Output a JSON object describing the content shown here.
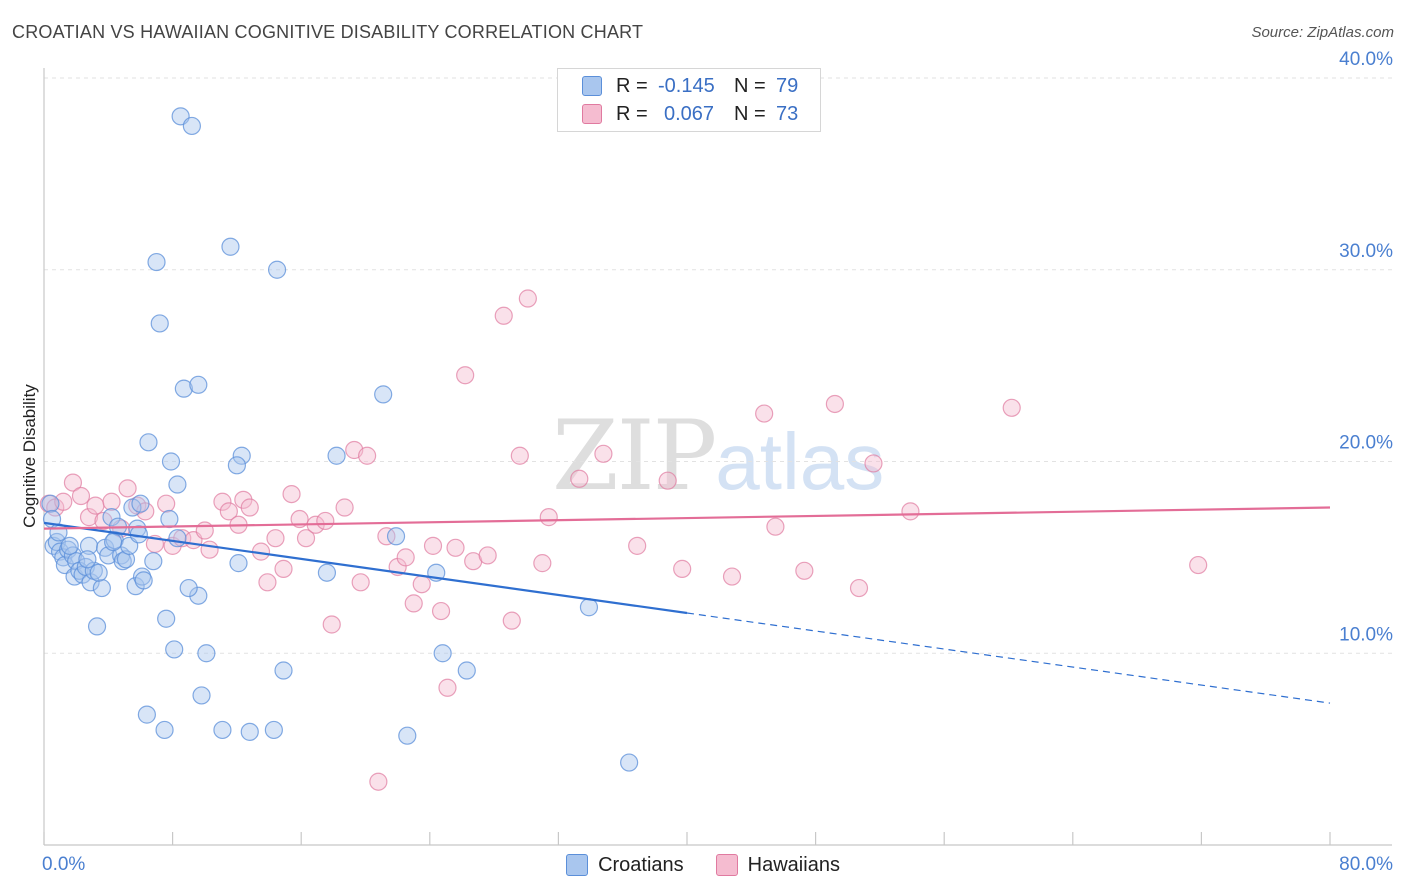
{
  "title": "CROATIAN VS HAWAIIAN COGNITIVE DISABILITY CORRELATION CHART",
  "source": "Source: ZipAtlas.com",
  "watermark": {
    "zip": "ZIP",
    "atlas": "atlas"
  },
  "colors": {
    "croatians": "#5b8fd9",
    "croatians_fill": "#a9c6ee",
    "hawaiians": "#e07aa0",
    "hawaiians_fill": "#f5bcd0",
    "blue_line": "#2f6fd0",
    "pink_line": "#e36d97",
    "tick": "#4a7fd0"
  },
  "legend": {
    "r_label": "R =",
    "n_label": "N =",
    "croatians": {
      "r": "-0.145",
      "n": "79"
    },
    "hawaiians": {
      "r": "0.067",
      "n": "73"
    }
  },
  "chart_data": {
    "type": "scatter",
    "title": "CROATIAN VS HAWAIIAN COGNITIVE DISABILITY CORRELATION CHART",
    "xlabel": "",
    "ylabel": "Cognitive Disability",
    "xlim": [
      0,
      80
    ],
    "ylim": [
      0,
      40
    ],
    "x_tick_labels": [
      "0.0%",
      "80.0%"
    ],
    "y_ticks": [
      10,
      20,
      30,
      40
    ],
    "y_tick_labels": [
      "10.0%",
      "20.0%",
      "30.0%",
      "40.0%"
    ],
    "grid": "horizontal dashed",
    "legend_position": "top-center",
    "series": [
      {
        "name": "Croatians",
        "r": -0.145,
        "n": 79,
        "trend": {
          "x0": 0,
          "y0": 16.8,
          "x1": 40,
          "y1": 12.1,
          "dashed_to_x": 80,
          "dashed_y": 7.4
        },
        "points": [
          [
            0.4,
            17.8
          ],
          [
            0.5,
            17.0
          ],
          [
            0.6,
            15.6
          ],
          [
            0.8,
            15.8
          ],
          [
            1.0,
            15.3
          ],
          [
            1.2,
            15.0
          ],
          [
            1.3,
            14.6
          ],
          [
            1.5,
            15.4
          ],
          [
            1.8,
            15.1
          ],
          [
            1.9,
            14.0
          ],
          [
            2.0,
            14.8
          ],
          [
            2.2,
            14.3
          ],
          [
            2.4,
            14.1
          ],
          [
            2.6,
            14.5
          ],
          [
            2.8,
            15.6
          ],
          [
            2.9,
            13.7
          ],
          [
            3.1,
            14.3
          ],
          [
            3.3,
            11.4
          ],
          [
            3.6,
            13.4
          ],
          [
            3.8,
            15.5
          ],
          [
            4.0,
            15.1
          ],
          [
            4.2,
            17.1
          ],
          [
            4.4,
            15.9
          ],
          [
            4.6,
            16.6
          ],
          [
            4.8,
            15.1
          ],
          [
            4.9,
            14.8
          ],
          [
            5.1,
            14.9
          ],
          [
            5.3,
            15.6
          ],
          [
            5.5,
            17.6
          ],
          [
            5.7,
            13.5
          ],
          [
            5.8,
            16.5
          ],
          [
            6.0,
            17.8
          ],
          [
            6.1,
            14.0
          ],
          [
            6.2,
            13.8
          ],
          [
            6.4,
            6.8
          ],
          [
            6.5,
            21.0
          ],
          [
            6.8,
            14.8
          ],
          [
            7.0,
            30.4
          ],
          [
            7.2,
            27.2
          ],
          [
            7.5,
            6.0
          ],
          [
            7.6,
            11.8
          ],
          [
            8.1,
            10.2
          ],
          [
            8.5,
            38.0
          ],
          [
            8.7,
            23.8
          ],
          [
            9.2,
            37.5
          ],
          [
            9.6,
            24.0
          ],
          [
            9.8,
            7.8
          ],
          [
            10.1,
            10.0
          ],
          [
            11.1,
            6.0
          ],
          [
            11.6,
            31.2
          ],
          [
            12.1,
            14.7
          ],
          [
            12.3,
            20.3
          ],
          [
            12.8,
            5.9
          ],
          [
            14.3,
            6.0
          ],
          [
            14.5,
            30.0
          ],
          [
            14.9,
            9.1
          ],
          [
            17.6,
            14.2
          ],
          [
            18.2,
            20.3
          ],
          [
            21.1,
            23.5
          ],
          [
            21.9,
            16.1
          ],
          [
            22.6,
            5.7
          ],
          [
            24.4,
            14.2
          ],
          [
            24.8,
            10.0
          ],
          [
            26.3,
            9.1
          ],
          [
            33.9,
            12.4
          ],
          [
            36.4,
            4.3
          ],
          [
            7.8,
            17.0
          ],
          [
            5.9,
            16.2
          ],
          [
            4.3,
            15.8
          ],
          [
            3.4,
            14.2
          ],
          [
            2.7,
            14.9
          ],
          [
            1.6,
            15.6
          ],
          [
            0.9,
            16.3
          ],
          [
            8.3,
            18.8
          ],
          [
            7.9,
            20.0
          ],
          [
            12.0,
            19.8
          ],
          [
            9.6,
            13.0
          ],
          [
            9.0,
            13.4
          ],
          [
            8.3,
            16.0
          ]
        ]
      },
      {
        "name": "Hawaiians",
        "r": 0.067,
        "n": 73,
        "trend": {
          "x0": 0,
          "y0": 16.5,
          "x1": 80,
          "y1": 17.6
        },
        "points": [
          [
            0.3,
            17.8
          ],
          [
            0.7,
            17.6
          ],
          [
            1.2,
            17.9
          ],
          [
            1.8,
            18.9
          ],
          [
            2.3,
            18.2
          ],
          [
            2.8,
            17.1
          ],
          [
            3.2,
            17.7
          ],
          [
            3.7,
            16.9
          ],
          [
            4.2,
            17.9
          ],
          [
            4.8,
            16.5
          ],
          [
            5.2,
            18.6
          ],
          [
            5.8,
            17.7
          ],
          [
            6.3,
            17.4
          ],
          [
            6.9,
            15.7
          ],
          [
            7.6,
            17.8
          ],
          [
            8.0,
            15.6
          ],
          [
            8.6,
            16.0
          ],
          [
            9.3,
            15.9
          ],
          [
            10.0,
            16.4
          ],
          [
            10.3,
            15.4
          ],
          [
            11.1,
            17.9
          ],
          [
            11.5,
            17.4
          ],
          [
            12.1,
            16.7
          ],
          [
            12.4,
            18.0
          ],
          [
            12.8,
            17.6
          ],
          [
            13.5,
            15.3
          ],
          [
            13.9,
            13.7
          ],
          [
            14.4,
            16.0
          ],
          [
            14.9,
            14.4
          ],
          [
            15.4,
            18.3
          ],
          [
            15.9,
            17.0
          ],
          [
            16.3,
            16.0
          ],
          [
            16.9,
            16.7
          ],
          [
            17.5,
            16.9
          ],
          [
            17.9,
            11.5
          ],
          [
            18.7,
            17.6
          ],
          [
            19.3,
            20.6
          ],
          [
            19.7,
            13.7
          ],
          [
            20.1,
            20.3
          ],
          [
            20.8,
            3.3
          ],
          [
            21.3,
            16.1
          ],
          [
            22.0,
            14.5
          ],
          [
            22.5,
            15.0
          ],
          [
            23.0,
            12.6
          ],
          [
            23.5,
            13.6
          ],
          [
            24.2,
            15.6
          ],
          [
            24.7,
            12.2
          ],
          [
            25.1,
            8.2
          ],
          [
            25.6,
            15.5
          ],
          [
            26.2,
            24.5
          ],
          [
            26.7,
            14.8
          ],
          [
            27.6,
            15.1
          ],
          [
            28.6,
            27.6
          ],
          [
            29.1,
            11.7
          ],
          [
            29.6,
            20.3
          ],
          [
            30.1,
            28.5
          ],
          [
            31.0,
            14.7
          ],
          [
            31.4,
            17.1
          ],
          [
            33.3,
            19.1
          ],
          [
            34.8,
            20.4
          ],
          [
            36.9,
            15.6
          ],
          [
            38.8,
            19.0
          ],
          [
            39.7,
            14.4
          ],
          [
            42.8,
            14.0
          ],
          [
            44.8,
            22.5
          ],
          [
            45.5,
            16.6
          ],
          [
            47.3,
            14.3
          ],
          [
            49.2,
            23.0
          ],
          [
            50.7,
            13.4
          ],
          [
            51.6,
            19.9
          ],
          [
            53.9,
            17.4
          ],
          [
            60.2,
            22.8
          ],
          [
            71.8,
            14.6
          ]
        ]
      }
    ]
  }
}
